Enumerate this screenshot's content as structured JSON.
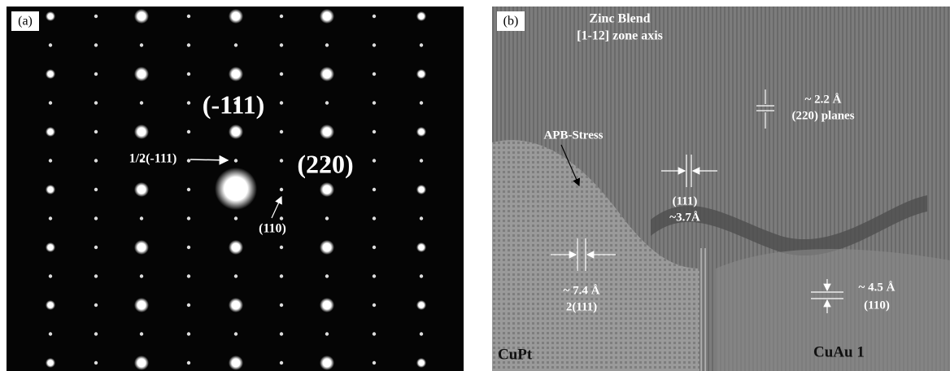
{
  "panel_a": {
    "label": "(a)",
    "annotations": [
      "(-111)",
      "1/2(-111)",
      "(220)",
      "(110)"
    ]
  },
  "panel_b": {
    "label": "(b)",
    "title": "Zinc Blend",
    "subtitle": "[1-12] zone axis",
    "annotations": [
      "APB-Stress",
      "~ 2.2 Å",
      "(220) planes",
      "(111)",
      "~3.7Å",
      "~ 7.4 Å",
      "2(111)",
      "~ 4.5 Å",
      "(110)",
      "CuPt",
      "CuAu 1"
    ]
  }
}
